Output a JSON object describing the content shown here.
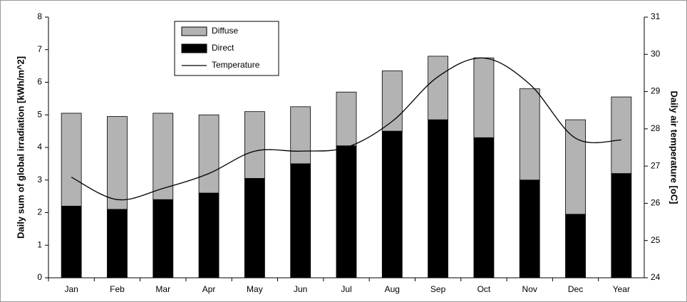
{
  "chart_data": {
    "type": "bar",
    "categories": [
      "Jan",
      "Feb",
      "Mar",
      "Apr",
      "May",
      "Jun",
      "Jul",
      "Aug",
      "Sep",
      "Oct",
      "Nov",
      "Dec",
      "Year"
    ],
    "series": [
      {
        "name": "Direct",
        "color": "#000000",
        "values": [
          2.2,
          2.1,
          2.4,
          2.6,
          3.05,
          3.5,
          4.05,
          4.5,
          4.85,
          4.3,
          3.0,
          1.95,
          3.2
        ]
      },
      {
        "name": "Diffuse",
        "color": "#b3b3b3",
        "values": [
          2.85,
          2.85,
          2.65,
          2.4,
          2.05,
          1.75,
          1.65,
          1.85,
          1.95,
          2.45,
          2.8,
          2.9,
          2.35
        ]
      },
      {
        "name": "Temperature",
        "color": "#000000",
        "axis": "y2",
        "values": [
          26.7,
          26.1,
          26.4,
          26.8,
          27.4,
          27.4,
          27.5,
          28.2,
          29.4,
          29.9,
          29.2,
          27.75,
          27.7
        ]
      }
    ],
    "ylabel": "Daily sum of global irradiation [kWh/m^2]",
    "y2label": "Daily air temperature [oC]",
    "ylim": [
      0,
      8
    ],
    "yticks": [
      0,
      1,
      2,
      3,
      4,
      5,
      6,
      7,
      8
    ],
    "y2lim": [
      24,
      31
    ],
    "y2ticks": [
      24,
      25,
      26,
      27,
      28,
      29,
      30,
      31
    ],
    "legend": [
      "Diffuse",
      "Direct",
      "Temperature"
    ]
  }
}
